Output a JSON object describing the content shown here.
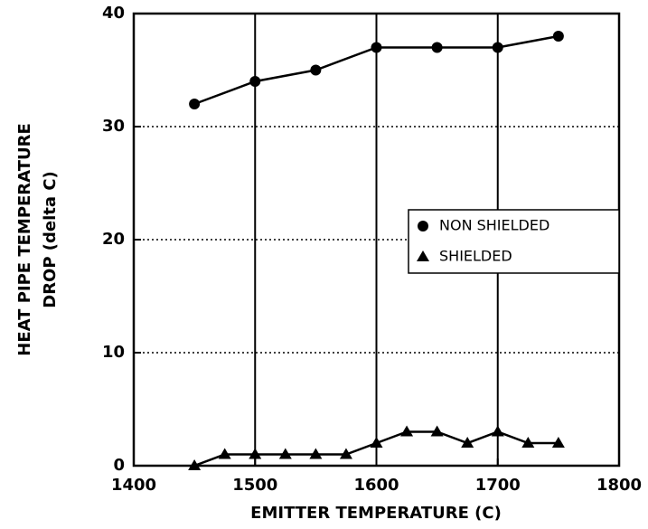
{
  "chart_data": {
    "type": "line",
    "xlabel": "EMITTER TEMPERATURE (C)",
    "ylabel": [
      "HEAT PIPE TEMPERATURE",
      "DROP (delta C)"
    ],
    "xlim": [
      1400,
      1800
    ],
    "xticks": [
      1400,
      1500,
      1600,
      1700,
      1800
    ],
    "ylim": [
      0,
      40
    ],
    "yticks": [
      0,
      10,
      20,
      30,
      40
    ],
    "grid": true,
    "legend": "right",
    "series": [
      {
        "name": "NON SHIELDED",
        "color": "#000000",
        "marker": "circle",
        "x": [
          1450,
          1500,
          1550,
          1600,
          1650,
          1700,
          1750
        ],
        "values": [
          32,
          34,
          35,
          37,
          37,
          37,
          38
        ]
      },
      {
        "name": "SHIELDED",
        "color": "#000000",
        "marker": "triangle",
        "x": [
          1450,
          1475,
          1500,
          1525,
          1550,
          1575,
          1600,
          1625,
          1650,
          1675,
          1700,
          1725,
          1750
        ],
        "values": [
          0,
          1,
          1,
          1,
          1,
          1,
          2,
          3,
          3,
          2,
          3,
          2,
          2
        ]
      }
    ]
  }
}
